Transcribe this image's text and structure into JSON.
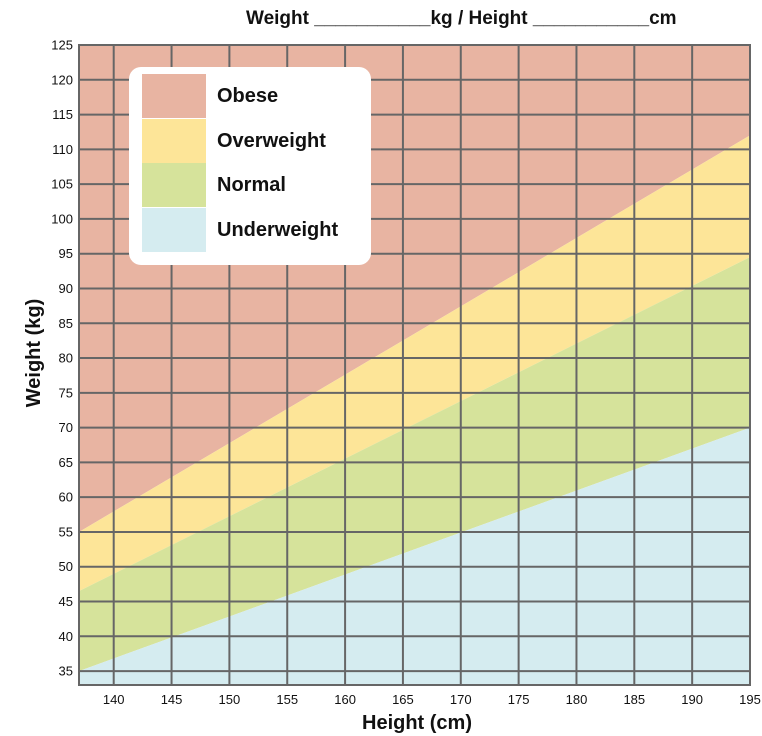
{
  "header": {
    "text": "Weight ___________kg /  Height ___________cm"
  },
  "chart_data": {
    "type": "area",
    "title": "",
    "xlabel": "Height (cm)",
    "ylabel": "Weight (kg)",
    "xlim": [
      137,
      195
    ],
    "ylim": [
      33,
      125
    ],
    "xticks": [
      140,
      145,
      150,
      155,
      160,
      165,
      170,
      175,
      180,
      185,
      190,
      195
    ],
    "yticks": [
      35,
      40,
      45,
      50,
      55,
      60,
      65,
      70,
      75,
      80,
      85,
      90,
      95,
      100,
      105,
      110,
      115,
      120,
      125
    ],
    "grid": true,
    "legend_position": "top-left",
    "bands": [
      {
        "name": "Obese",
        "color": "#e8b4a2",
        "lower_boundary": [
          [
            137,
            55
          ],
          [
            195,
            112
          ]
        ]
      },
      {
        "name": "Overweight",
        "color": "#fde598",
        "lower_boundary": [
          [
            137,
            46.5
          ],
          [
            195,
            94.5
          ]
        ]
      },
      {
        "name": "Normal",
        "color": "#d6e39b",
        "lower_boundary": [
          [
            137,
            35
          ],
          [
            195,
            70
          ]
        ]
      },
      {
        "name": "Underweight",
        "color": "#d5ecf0",
        "lower_boundary": [
          [
            137,
            33
          ],
          [
            195,
            33
          ]
        ]
      }
    ]
  }
}
